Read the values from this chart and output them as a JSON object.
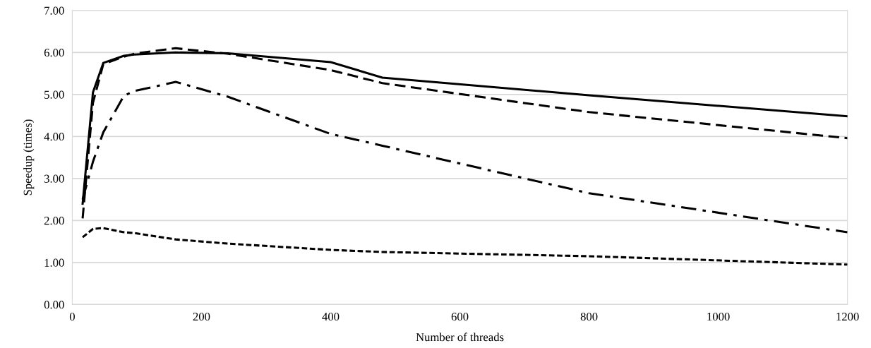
{
  "chart_data": {
    "type": "line",
    "xlabel": "Number of threads",
    "ylabel": "Speedup (times)",
    "x": [
      16,
      32,
      48,
      80,
      96,
      160,
      240,
      400,
      480,
      800,
      1200
    ],
    "series": [
      {
        "color": "#000000",
        "line_style": "solid",
        "values": [
          2.4,
          5.05,
          5.75,
          5.92,
          5.95,
          6.0,
          5.98,
          5.77,
          5.4,
          4.98,
          4.48
        ]
      },
      {
        "color": "#000000",
        "line_style": "dashed",
        "values": [
          2.05,
          4.8,
          5.72,
          5.9,
          5.97,
          6.1,
          5.97,
          5.58,
          5.27,
          4.58,
          3.96
        ]
      },
      {
        "color": "#000000",
        "line_style": "dashdot",
        "values": [
          2.5,
          3.4,
          4.1,
          4.97,
          5.08,
          5.3,
          4.95,
          4.06,
          3.78,
          2.65,
          1.72
        ]
      },
      {
        "color": "#000000",
        "line_style": "dotted",
        "values": [
          1.6,
          1.8,
          1.82,
          1.72,
          1.7,
          1.55,
          1.45,
          1.3,
          1.25,
          1.15,
          0.95
        ]
      }
    ],
    "xlim": [
      0,
      1200
    ],
    "xticks": [
      0,
      200,
      400,
      600,
      800,
      1000,
      1200
    ],
    "ylim": [
      0,
      7
    ],
    "yticks": [
      {
        "value": 0,
        "label": "0.00"
      },
      {
        "value": 1,
        "label": "1.00"
      },
      {
        "value": 2,
        "label": "2.00"
      },
      {
        "value": 3,
        "label": "3.00"
      },
      {
        "value": 4,
        "label": "4.00"
      },
      {
        "value": 5,
        "label": "5.00"
      },
      {
        "value": 6,
        "label": "6.00"
      },
      {
        "value": 7,
        "label": "7.00"
      }
    ],
    "grid": "y",
    "marker": "none"
  }
}
